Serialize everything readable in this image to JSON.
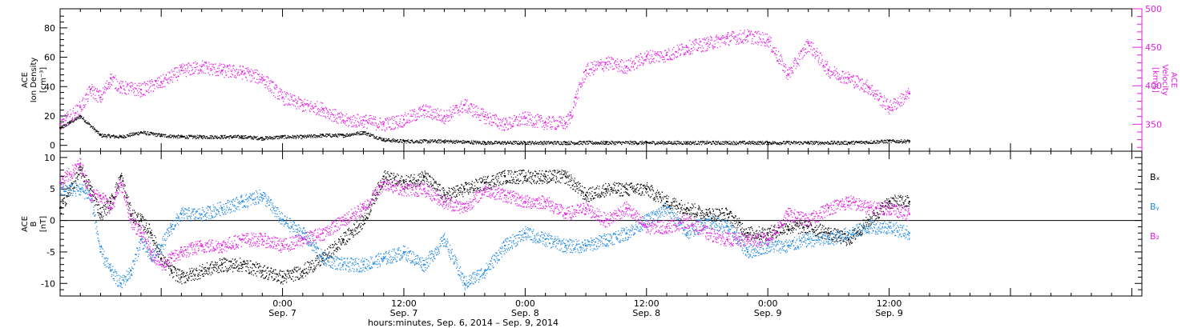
{
  "xaxis": {
    "label": "hours:minutes, Sep. 6, 2014 – Sep. 9, 2014",
    "range_hours": [
      -22,
      85
    ],
    "ticks": [
      {
        "time": "0:00",
        "date": "Sep. 7",
        "hour": 0
      },
      {
        "time": "12:00",
        "date": "Sep. 7",
        "hour": 12
      },
      {
        "time": "0:00",
        "date": "Sep. 8",
        "hour": 24
      },
      {
        "time": "12:00",
        "date": "Sep. 8",
        "hour": 36
      },
      {
        "time": "0:00",
        "date": "Sep. 9",
        "hour": 48
      },
      {
        "time": "12:00",
        "date": "Sep. 9",
        "hour": 60
      }
    ]
  },
  "panel1": {
    "left_label": [
      "ACE",
      "Ion Density",
      "[cm⁻³]"
    ],
    "right_label": [
      "ACE",
      "Velocity",
      "[km/s]"
    ],
    "left_ticks": [
      "0",
      "20",
      "40",
      "60",
      "80"
    ],
    "right_ticks": [
      "350",
      "400",
      "450",
      "500"
    ]
  },
  "panel2": {
    "left_label": [
      "ACE",
      "B",
      "[nT]"
    ],
    "left_ticks": [
      "-10",
      "-5",
      "0",
      "5",
      "10"
    ],
    "legend": [
      {
        "text": "Bₓ",
        "color": "#000000"
      },
      {
        "text": "Bᵧ",
        "color": "#1e88e5"
      },
      {
        "text": "B₂",
        "color": "#e41ee4"
      }
    ]
  },
  "chart_data": [
    {
      "type": "scatter",
      "title": "",
      "xlabel": "hours:minutes, Sep. 6, 2014 – Sep. 9, 2014",
      "xlim": [
        -22,
        85
      ],
      "y_left_label": "ACE Ion Density [cm⁻³]",
      "y_left_lim": [
        -4,
        93
      ],
      "y_right_label": "ACE Velocity [km/s]",
      "y_right_lim": [
        315,
        500
      ],
      "series": [
        {
          "name": "Ion Density",
          "axis": "left",
          "color": "#000000",
          "x": [
            -22,
            -21,
            -20,
            -18,
            -16,
            -14,
            -12,
            -10,
            -8,
            -6,
            -4,
            -2,
            0,
            2,
            4,
            6,
            8,
            10,
            12,
            16,
            20,
            24,
            28,
            32,
            36,
            40,
            44,
            48,
            52,
            56,
            60,
            62
          ],
          "y": [
            12,
            16,
            20,
            7,
            6,
            9,
            7,
            6,
            6,
            6,
            6,
            5,
            6,
            6,
            7,
            7,
            9,
            4,
            3,
            3,
            2,
            2,
            2,
            2,
            2,
            2,
            2,
            2,
            2,
            2,
            3,
            3
          ]
        },
        {
          "name": "Velocity",
          "axis": "right",
          "color": "#e41ee4",
          "x": [
            -22,
            -20,
            -19,
            -18,
            -17,
            -16,
            -14,
            -12,
            -10,
            -8,
            -6,
            -4,
            -2,
            0,
            2,
            4,
            6,
            8,
            10,
            12,
            14,
            16,
            18,
            20,
            22,
            24,
            26,
            28,
            28.5,
            29,
            30,
            32,
            34,
            36,
            38,
            40,
            42,
            44,
            46,
            48,
            50,
            52,
            54,
            56,
            58,
            60,
            62
          ],
          "y": [
            350,
            372,
            395,
            385,
            410,
            398,
            395,
            405,
            420,
            425,
            420,
            418,
            410,
            385,
            375,
            370,
            355,
            355,
            350,
            356,
            368,
            360,
            375,
            360,
            350,
            358,
            352,
            352,
            362,
            385,
            420,
            430,
            425,
            438,
            440,
            450,
            455,
            462,
            465,
            460,
            415,
            455,
            420,
            410,
            398,
            372,
            390
          ]
        }
      ]
    },
    {
      "type": "scatter",
      "title": "",
      "xlabel": "hours:minutes, Sep. 6, 2014 – Sep. 9, 2014",
      "xlim": [
        -22,
        85
      ],
      "ylabel": "ACE B [nT]",
      "ylim": [
        -12,
        11
      ],
      "series": [
        {
          "name": "Bx",
          "color": "#000000",
          "x": [
            -22,
            -20,
            -19,
            -18,
            -17,
            -16,
            -15,
            -14,
            -13,
            -12,
            -11,
            -10,
            -8,
            -6,
            -4,
            -2,
            0,
            2,
            4,
            6,
            8,
            10,
            12,
            14,
            16,
            18,
            20,
            22,
            24,
            26,
            28,
            30,
            32,
            34,
            36,
            38,
            40,
            42,
            44,
            46,
            48,
            50,
            52,
            54,
            56,
            58,
            60,
            62
          ],
          "y": [
            2,
            8,
            5,
            1,
            3,
            7,
            1,
            0,
            -2,
            -6,
            -8,
            -9,
            -8,
            -7,
            -7,
            -8,
            -9,
            -8,
            -6,
            -3,
            0,
            7,
            6,
            7,
            4,
            5,
            6,
            7,
            7,
            7,
            7,
            4,
            5,
            5,
            5,
            3,
            2,
            1,
            1,
            -2,
            -2,
            -1,
            -1,
            -2,
            -3,
            0,
            3,
            3
          ]
        },
        {
          "name": "By",
          "color": "#1e88e5",
          "x": [
            -22,
            -20,
            -19,
            -18,
            -17,
            -16,
            -15,
            -14,
            -13,
            -12,
            -11,
            -10,
            -8,
            -6,
            -4,
            -2,
            0,
            2,
            4,
            6,
            8,
            10,
            12,
            14,
            16,
            18,
            20,
            22,
            24,
            26,
            28,
            30,
            32,
            34,
            36,
            38,
            40,
            42,
            44,
            46,
            48,
            50,
            52,
            54,
            56,
            58,
            60,
            62
          ],
          "y": [
            5,
            5,
            4,
            -5,
            -8,
            -10,
            -8,
            -3,
            -6,
            -4,
            -1,
            1,
            1,
            2,
            3,
            4,
            0,
            -2,
            -6,
            -7,
            -7,
            -6,
            -5,
            -7,
            -3,
            -10,
            -8,
            -4,
            -2,
            -3,
            -4,
            -4,
            -3,
            -2,
            0,
            2,
            -2,
            0,
            -1,
            -5,
            -4,
            -4,
            -3,
            -3,
            -2,
            -1,
            -1,
            -2
          ]
        },
        {
          "name": "Bz",
          "color": "#e41ee4",
          "x": [
            -22,
            -20,
            -19,
            -18,
            -17,
            -16,
            -15,
            -14,
            -13,
            -12,
            -11,
            -10,
            -8,
            -6,
            -4,
            -2,
            0,
            2,
            4,
            6,
            8,
            10,
            12,
            14,
            16,
            18,
            20,
            22,
            24,
            26,
            28,
            30,
            32,
            34,
            36,
            38,
            40,
            42,
            44,
            46,
            48,
            50,
            52,
            54,
            56,
            58,
            60,
            62
          ],
          "y": [
            6,
            9,
            4,
            4,
            2,
            6,
            0,
            -2,
            -5,
            -7,
            -6,
            -5,
            -4,
            -4,
            -3,
            -3,
            -4,
            -3,
            -2,
            0,
            2,
            6,
            5,
            5,
            3,
            2,
            5,
            4,
            3,
            3,
            1,
            2,
            0,
            2,
            -1,
            -1,
            0,
            -2,
            -3,
            -3,
            -3,
            1,
            0,
            2,
            3,
            2,
            2,
            1
          ]
        }
      ]
    }
  ]
}
